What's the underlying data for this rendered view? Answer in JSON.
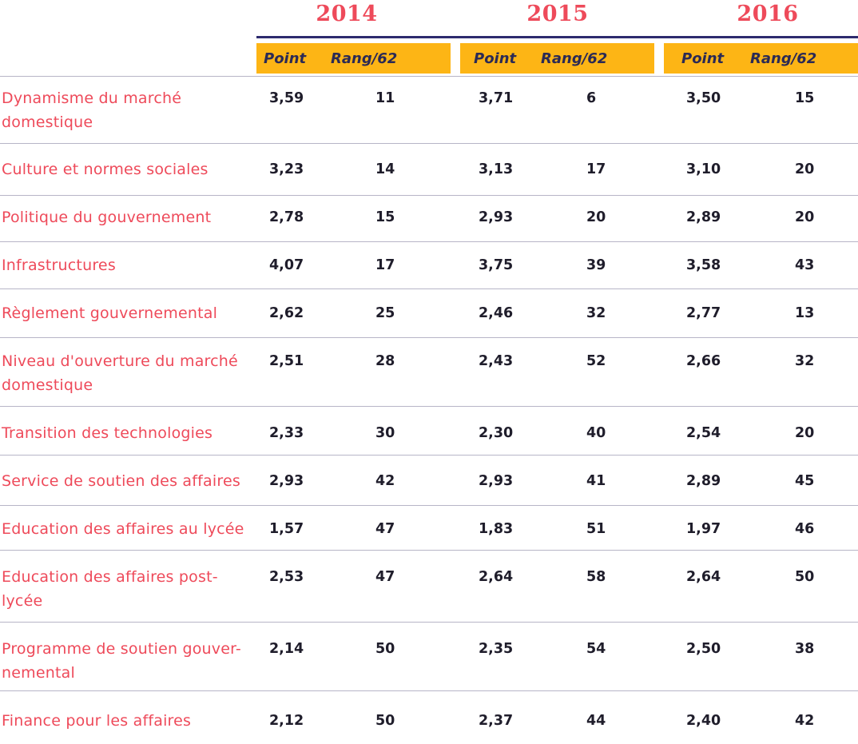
{
  "years": [
    "2014",
    "2015",
    "2016"
  ],
  "subheaders": {
    "point": "Point",
    "rank": "Rang/62"
  },
  "rows": [
    {
      "label": "Dynamisme du marché domestique",
      "y2014": {
        "point": "3,59",
        "rank": "11"
      },
      "y2015": {
        "point": "3,71",
        "rank": "6"
      },
      "y2016": {
        "point": "3,50",
        "rank": "15"
      }
    },
    {
      "label": "Culture et normes sociales",
      "y2014": {
        "point": "3,23",
        "rank": "14"
      },
      "y2015": {
        "point": "3,13",
        "rank": "17"
      },
      "y2016": {
        "point": "3,10",
        "rank": "20"
      }
    },
    {
      "label": "Politique du gouvernement",
      "y2014": {
        "point": "2,78",
        "rank": "15"
      },
      "y2015": {
        "point": "2,93",
        "rank": "20"
      },
      "y2016": {
        "point": "2,89",
        "rank": "20"
      }
    },
    {
      "label": "Infrastructures",
      "y2014": {
        "point": "4,07",
        "rank": "17"
      },
      "y2015": {
        "point": "3,75",
        "rank": "39"
      },
      "y2016": {
        "point": "3,58",
        "rank": "43"
      }
    },
    {
      "label": "Règlement gouvernemental",
      "y2014": {
        "point": "2,62",
        "rank": "25"
      },
      "y2015": {
        "point": "2,46",
        "rank": "32"
      },
      "y2016": {
        "point": "2,77",
        "rank": "13"
      }
    },
    {
      "label": "Niveau d'ouverture du marché domestique",
      "y2014": {
        "point": "2,51",
        "rank": "28"
      },
      "y2015": {
        "point": "2,43",
        "rank": "52"
      },
      "y2016": {
        "point": "2,66",
        "rank": "32"
      }
    },
    {
      "label": "Transition des technologies",
      "y2014": {
        "point": "2,33",
        "rank": "30"
      },
      "y2015": {
        "point": "2,30",
        "rank": "40"
      },
      "y2016": {
        "point": "2,54",
        "rank": "20"
      }
    },
    {
      "label": "Service de soutien des affaires",
      "y2014": {
        "point": "2,93",
        "rank": "42"
      },
      "y2015": {
        "point": "2,93",
        "rank": "41"
      },
      "y2016": {
        "point": "2,89",
        "rank": "45"
      }
    },
    {
      "label": "Education des affaires au lycée",
      "y2014": {
        "point": "1,57",
        "rank": "47"
      },
      "y2015": {
        "point": "1,83",
        "rank": "51"
      },
      "y2016": {
        "point": "1,97",
        "rank": "46"
      }
    },
    {
      "label": "Education des affaires post-lycée",
      "y2014": {
        "point": "2,53",
        "rank": "47"
      },
      "y2015": {
        "point": "2,64",
        "rank": "58"
      },
      "y2016": {
        "point": "2,64",
        "rank": "50"
      }
    },
    {
      "label": "Programme de soutien gouver-nemental",
      "y2014": {
        "point": "2,14",
        "rank": "50"
      },
      "y2015": {
        "point": "2,35",
        "rank": "54"
      },
      "y2016": {
        "point": "2,50",
        "rank": "38"
      }
    },
    {
      "label": "Finance pour les affaires",
      "y2014": {
        "point": "2,12",
        "rank": "50"
      },
      "y2015": {
        "point": "2,37",
        "rank": "44"
      },
      "y2016": {
        "point": "2,40",
        "rank": "42"
      }
    }
  ]
}
